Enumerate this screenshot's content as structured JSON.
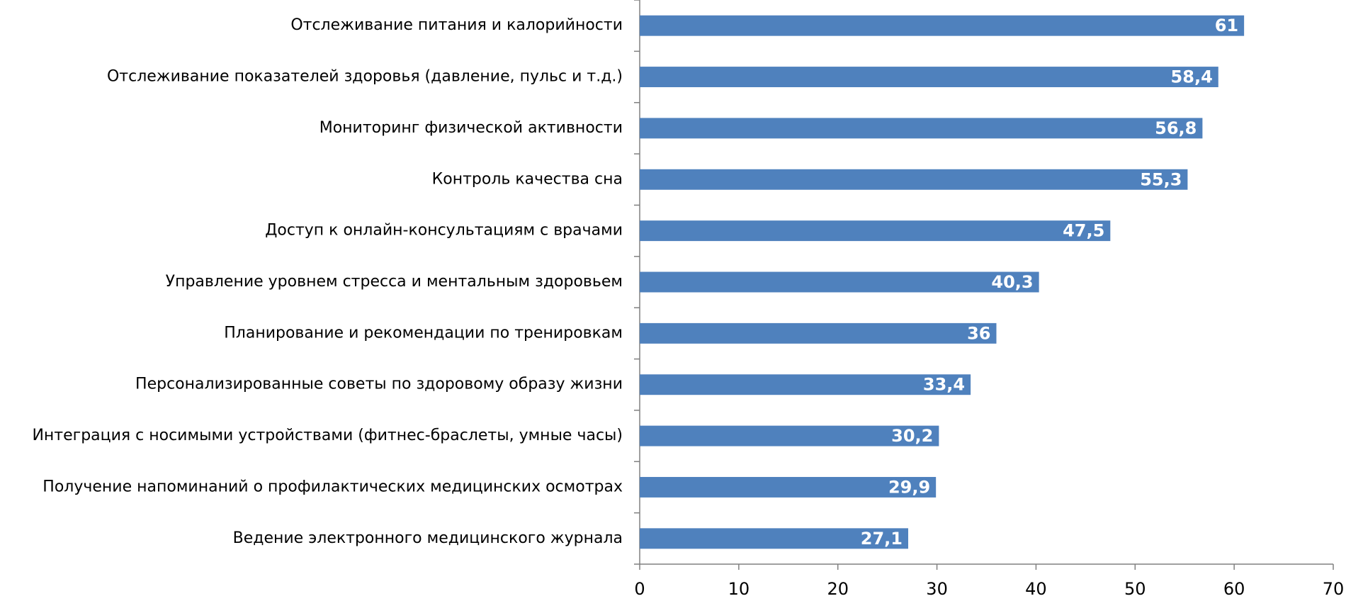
{
  "chart_data": {
    "type": "barh",
    "categories": [
      "Отслеживание питания и калорийности",
      "Отслеживание показателей здоровья (давление, пульс и т.д.)",
      "Мониторинг физической активности",
      "Контроль качества сна",
      "Доступ к онлайн-консультациям с врачами",
      "Управление уровнем стресса и ментальным здоровьем",
      "Планирование и рекомендации по тренировкам",
      "Персонализированные советы по здоровому образу жизни",
      "Интеграция с носимыми устройствами (фитнес-браслеты, умные часы)",
      "Получение напоминаний о профилактических медицинских осмотрах",
      "Ведение электронного медицинского журнала"
    ],
    "values": [
      61,
      58.4,
      56.8,
      55.3,
      47.5,
      40.3,
      36,
      33.4,
      30.2,
      29.9,
      27.1
    ],
    "value_labels": [
      "61",
      "58,4",
      "56,8",
      "55,3",
      "47,5",
      "40,3",
      "36",
      "33,4",
      "30,2",
      "29,9",
      "27,1"
    ],
    "color": "#4f81bd",
    "xlim": [
      0,
      70
    ],
    "xticks": [
      0,
      10,
      20,
      30,
      40,
      50,
      60,
      70
    ]
  }
}
